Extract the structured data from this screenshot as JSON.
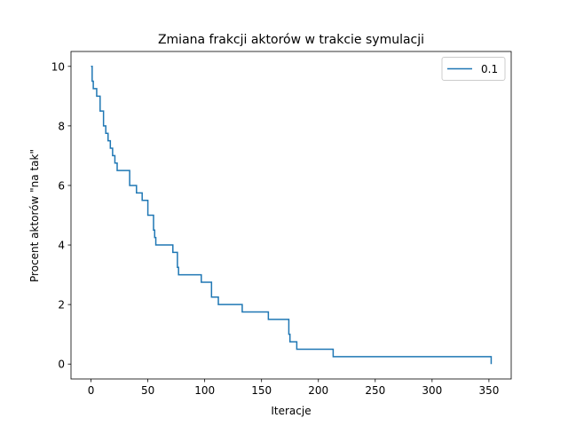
{
  "chart_data": {
    "type": "line",
    "title": "Zmiana frakcji aktorów w trakcie symulacji",
    "xlabel": "Iteracje",
    "ylabel": "Procent aktorów \"na tak\"",
    "xlim": [
      -17.6,
      369.6
    ],
    "ylim": [
      -0.5,
      10.5
    ],
    "xticks": [
      0,
      50,
      100,
      150,
      200,
      250,
      300,
      350
    ],
    "yticks": [
      0,
      2,
      4,
      6,
      8,
      10
    ],
    "legend": "top-right",
    "grid": false,
    "series": [
      {
        "name": "0.1",
        "color": "#1f77b4",
        "step": true,
        "x": [
          0,
          1,
          2,
          5,
          8,
          11,
          13,
          15,
          17,
          19,
          21,
          23,
          26,
          34,
          40,
          45,
          50,
          55,
          56,
          57,
          72,
          76,
          77,
          97,
          106,
          112,
          133,
          156,
          174,
          175,
          177,
          181,
          213,
          351,
          352
        ],
        "y": [
          10,
          9.5,
          9.25,
          9.0,
          8.5,
          8.0,
          7.75,
          7.5,
          7.25,
          7.0,
          6.75,
          6.5,
          6.5,
          6.0,
          5.75,
          5.5,
          5.0,
          4.5,
          4.25,
          4.0,
          3.75,
          3.25,
          3.0,
          2.75,
          2.25,
          2.0,
          1.75,
          1.5,
          1.0,
          0.75,
          0.75,
          0.5,
          0.25,
          0.25,
          0.0
        ]
      }
    ]
  }
}
